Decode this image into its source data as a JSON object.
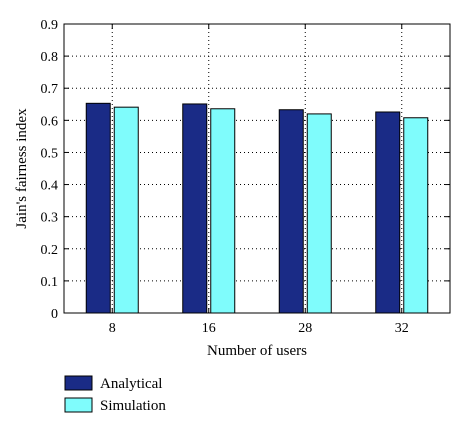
{
  "chart_data": {
    "type": "bar",
    "categories": [
      "8",
      "16",
      "28",
      "32"
    ],
    "series": [
      {
        "name": "Analytical",
        "values": [
          0.653,
          0.651,
          0.633,
          0.626
        ],
        "color": "#1a2b86"
      },
      {
        "name": "Simulation",
        "values": [
          0.641,
          0.636,
          0.62,
          0.608
        ],
        "color": "#7ffcfc"
      }
    ],
    "title": "",
    "xlabel": "Number of users",
    "ylabel": "Jain's fairness index",
    "ylim": [
      0,
      0.9
    ],
    "yticks": [
      "0",
      "0.1",
      "0.2",
      "0.3",
      "0.4",
      "0.5",
      "0.6",
      "0.7",
      "0.8",
      "0.9"
    ],
    "grid": true,
    "legend_position": "below-left"
  }
}
